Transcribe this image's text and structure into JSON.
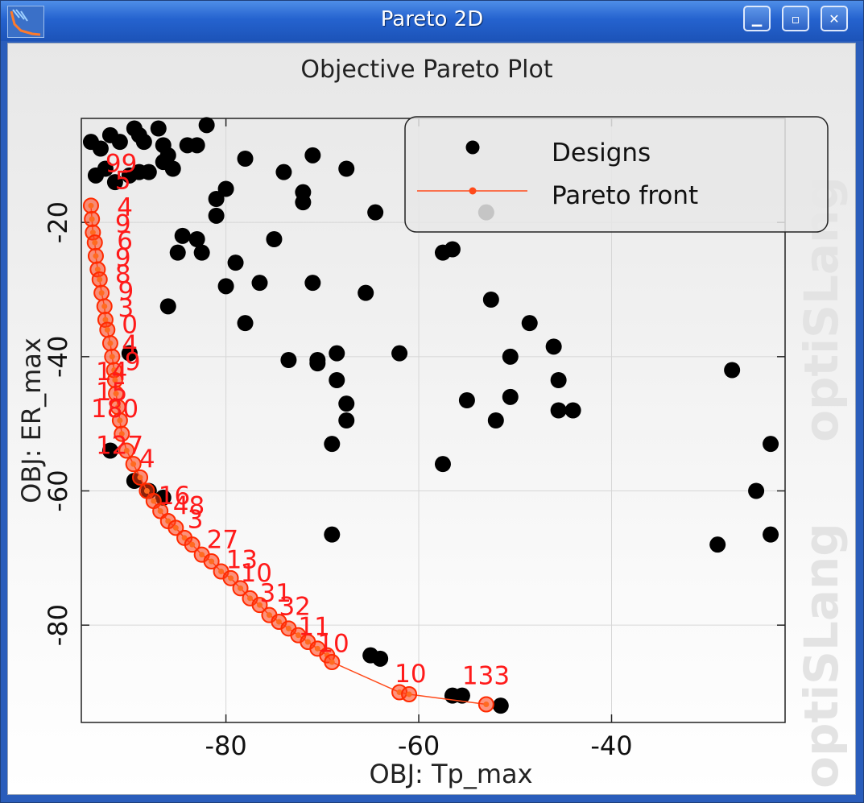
{
  "window": {
    "title": "Pareto 2D",
    "buttons": [
      "minimize",
      "restore",
      "close"
    ]
  },
  "watermark": "optiSLang",
  "chart_data": {
    "type": "scatter",
    "title": "Objective Pareto Plot",
    "xlabel": "OBJ: Tp_max",
    "ylabel": "OBJ: ER_max",
    "xlim": [
      -95,
      -22
    ],
    "ylim": [
      -94.5,
      -4.5
    ],
    "xticks": [
      -80,
      -60,
      -40
    ],
    "yticks": [
      -20,
      -40,
      -60,
      -80
    ],
    "grid": true,
    "legend": {
      "position": "top-right",
      "entries": [
        "Designs",
        "Pareto front"
      ]
    },
    "colors": {
      "designs": "#000000",
      "pareto_line": "#ff4a1a",
      "pareto_marker": "#ff2a00",
      "labels": "#ff1a1a"
    },
    "series": [
      {
        "name": "Designs",
        "kind": "scatter",
        "points": [
          [
            -94,
            -8
          ],
          [
            -93,
            -9
          ],
          [
            -92,
            -7
          ],
          [
            -91,
            -8
          ],
          [
            -89.5,
            -6
          ],
          [
            -89,
            -7
          ],
          [
            -87,
            -6
          ],
          [
            -88.5,
            -8
          ],
          [
            -86.5,
            -8.5
          ],
          [
            -86,
            -10
          ],
          [
            -84,
            -8.5
          ],
          [
            -83,
            -8.5
          ],
          [
            -82,
            -5.5
          ],
          [
            -93.5,
            -13
          ],
          [
            -92.5,
            -12
          ],
          [
            -91.5,
            -14
          ],
          [
            -90,
            -13
          ],
          [
            -89,
            -12.5
          ],
          [
            -88,
            -12.5
          ],
          [
            -86.5,
            -11
          ],
          [
            -85.5,
            -12
          ],
          [
            -81,
            -16.5
          ],
          [
            -80,
            -15
          ],
          [
            -81,
            -19
          ],
          [
            -84.5,
            -22
          ],
          [
            -83,
            -22.5
          ],
          [
            -85,
            -24.5
          ],
          [
            -82.5,
            -24.5
          ],
          [
            -79,
            -26
          ],
          [
            -80,
            -29.5
          ],
          [
            -76.5,
            -29
          ],
          [
            -75,
            -22.5
          ],
          [
            -78,
            -10.5
          ],
          [
            -74,
            -12.5
          ],
          [
            -72,
            -15.5
          ],
          [
            -72,
            -17
          ],
          [
            -71,
            -10
          ],
          [
            -67.5,
            -12
          ],
          [
            -64.5,
            -18.5
          ],
          [
            -57.5,
            -24.5
          ],
          [
            -56.5,
            -24
          ],
          [
            -53,
            -18.5
          ],
          [
            -71,
            -29
          ],
          [
            -65.5,
            -30.5
          ],
          [
            -52.5,
            -31.5
          ],
          [
            -86,
            -32.5
          ],
          [
            -78,
            -35
          ],
          [
            -90,
            -39.5
          ],
          [
            -73.5,
            -40.5
          ],
          [
            -70.5,
            -41
          ],
          [
            -70.5,
            -40.5
          ],
          [
            -68.5,
            -39.5
          ],
          [
            -62,
            -39.5
          ],
          [
            -55,
            -46.5
          ],
          [
            -52,
            -49.5
          ],
          [
            -50.5,
            -46
          ],
          [
            -50.5,
            -40
          ],
          [
            -48.5,
            -35
          ],
          [
            -46,
            -38.5
          ],
          [
            -45.5,
            -43.5
          ],
          [
            -45.5,
            -48
          ],
          [
            -44,
            -48
          ],
          [
            -68.5,
            -43.5
          ],
          [
            -67.5,
            -47
          ],
          [
            -67.5,
            -49.5
          ],
          [
            -69,
            -53
          ],
          [
            -57.5,
            -56
          ],
          [
            -27.5,
            -42
          ],
          [
            -23.5,
            -53
          ],
          [
            -25,
            -60
          ],
          [
            -23.5,
            -66.5
          ],
          [
            -29,
            -68
          ],
          [
            -69,
            -66.5
          ],
          [
            -65,
            -84.5
          ],
          [
            -64,
            -85
          ],
          [
            -56.5,
            -90.5
          ],
          [
            -55.5,
            -90.5
          ],
          [
            -51.5,
            -92
          ],
          [
            -92,
            -54
          ],
          [
            -89.5,
            -58.5
          ],
          [
            -88,
            -60
          ],
          [
            -86.5,
            -61
          ]
        ]
      },
      {
        "name": "Pareto front",
        "kind": "line",
        "points": [
          [
            -94,
            -17.5
          ],
          [
            -93.9,
            -19.5
          ],
          [
            -93.8,
            -21.5
          ],
          [
            -93.6,
            -23
          ],
          [
            -93.5,
            -25
          ],
          [
            -93.3,
            -27
          ],
          [
            -93.1,
            -28.5
          ],
          [
            -92.9,
            -30.5
          ],
          [
            -92.6,
            -32.5
          ],
          [
            -92.5,
            -34.5
          ],
          [
            -92.3,
            -36
          ],
          [
            -92,
            -38
          ],
          [
            -91.8,
            -40
          ],
          [
            -91.6,
            -42
          ],
          [
            -91.5,
            -43.5
          ],
          [
            -91.4,
            -45.5
          ],
          [
            -91.2,
            -47.5
          ],
          [
            -91,
            -49.5
          ],
          [
            -90.8,
            -51.5
          ],
          [
            -90.3,
            -54
          ],
          [
            -89.6,
            -56
          ],
          [
            -88.9,
            -58
          ],
          [
            -88.2,
            -60
          ],
          [
            -87.5,
            -61.5
          ],
          [
            -86.8,
            -63
          ],
          [
            -86,
            -64.5
          ],
          [
            -85.2,
            -65.5
          ],
          [
            -84.3,
            -67
          ],
          [
            -83.5,
            -68
          ],
          [
            -82.5,
            -69.5
          ],
          [
            -81.5,
            -70.5
          ],
          [
            -80.5,
            -72
          ],
          [
            -79.5,
            -73
          ],
          [
            -78.5,
            -74.5
          ],
          [
            -77.5,
            -76
          ],
          [
            -76.5,
            -77
          ],
          [
            -75.5,
            -78.5
          ],
          [
            -74.5,
            -79.5
          ],
          [
            -73.5,
            -80.5
          ],
          [
            -72.5,
            -81.5
          ],
          [
            -71.5,
            -82.5
          ],
          [
            -70.5,
            -83.5
          ],
          [
            -69.5,
            -84.5
          ],
          [
            -69,
            -85.5
          ],
          [
            -62,
            -90
          ],
          [
            -61,
            -90.3
          ],
          [
            -53,
            -91.8
          ]
        ]
      }
    ],
    "point_labels": [
      {
        "text": "99",
        "x": -92.5,
        "y": -12.5
      },
      {
        "text": "5",
        "x": -91.5,
        "y": -15
      },
      {
        "text": "4",
        "x": -91.3,
        "y": -19
      },
      {
        "text": "9",
        "x": -91.5,
        "y": -21.5
      },
      {
        "text": "6",
        "x": -91.3,
        "y": -24
      },
      {
        "text": "9",
        "x": -91.5,
        "y": -26.5
      },
      {
        "text": "8",
        "x": -91.5,
        "y": -29
      },
      {
        "text": "9",
        "x": -91.2,
        "y": -31.5
      },
      {
        "text": "3",
        "x": -91.2,
        "y": -34
      },
      {
        "text": "0",
        "x": -90.8,
        "y": -36.5
      },
      {
        "text": "4",
        "x": -90.8,
        "y": -39.5
      },
      {
        "text": "9",
        "x": -90.5,
        "y": -42
      },
      {
        "text": "14",
        "x": -93.5,
        "y": -43.5
      },
      {
        "text": "15",
        "x": -93.5,
        "y": -46.5
      },
      {
        "text": "180",
        "x": -94,
        "y": -49
      },
      {
        "text": "127",
        "x": -93.5,
        "y": -54.5
      },
      {
        "text": "4",
        "x": -89,
        "y": -56.5
      },
      {
        "text": "16",
        "x": -87,
        "y": -62
      },
      {
        "text": "48",
        "x": -85.5,
        "y": -63.5
      },
      {
        "text": "3",
        "x": -84,
        "y": -65.5
      },
      {
        "text": "27",
        "x": -82,
        "y": -68.5
      },
      {
        "text": "13",
        "x": -80,
        "y": -71.5
      },
      {
        "text": "10",
        "x": -78.5,
        "y": -73.5
      },
      {
        "text": "31",
        "x": -76.5,
        "y": -76.5
      },
      {
        "text": "32",
        "x": -74.5,
        "y": -78.5
      },
      {
        "text": "11",
        "x": -72.5,
        "y": -81.5
      },
      {
        "text": "10",
        "x": -70.5,
        "y": -84
      },
      {
        "text": "10",
        "x": -62.5,
        "y": -88.5
      },
      {
        "text": "133",
        "x": -55.5,
        "y": -88.8
      }
    ]
  }
}
